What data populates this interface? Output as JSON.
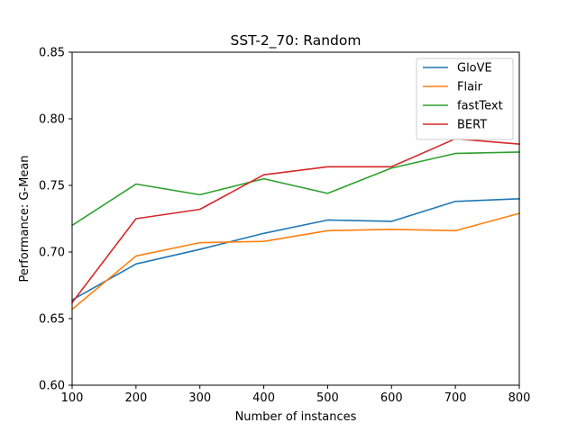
{
  "chart_data": {
    "type": "line",
    "title": "SST-2_70: Random",
    "xlabel": "Number of instances",
    "ylabel": "Performance: G-Mean",
    "x": [
      100,
      200,
      300,
      400,
      500,
      600,
      700,
      800
    ],
    "xlim": [
      100,
      800
    ],
    "ylim": [
      0.6,
      0.85
    ],
    "xticks": [
      "100",
      "200",
      "300",
      "400",
      "500",
      "600",
      "700",
      "800"
    ],
    "yticks": [
      "0.60",
      "0.65",
      "0.70",
      "0.75",
      "0.80",
      "0.85"
    ],
    "grid": false,
    "legend_position": "top-right",
    "series": [
      {
        "name": "GloVE",
        "color": "#1f77b4",
        "values": [
          0.664,
          0.691,
          0.702,
          0.714,
          0.724,
          0.723,
          0.738,
          0.74
        ]
      },
      {
        "name": "Flair",
        "color": "#ff7f0e",
        "values": [
          0.657,
          0.697,
          0.707,
          0.708,
          0.716,
          0.717,
          0.716,
          0.729
        ]
      },
      {
        "name": "fastText",
        "color": "#2ca02c",
        "values": [
          0.72,
          0.751,
          0.743,
          0.755,
          0.744,
          0.763,
          0.774,
          0.775
        ]
      },
      {
        "name": "BERT",
        "color": "#d62728",
        "values": [
          0.662,
          0.725,
          0.732,
          0.758,
          0.764,
          0.764,
          0.785,
          0.781
        ]
      }
    ]
  }
}
